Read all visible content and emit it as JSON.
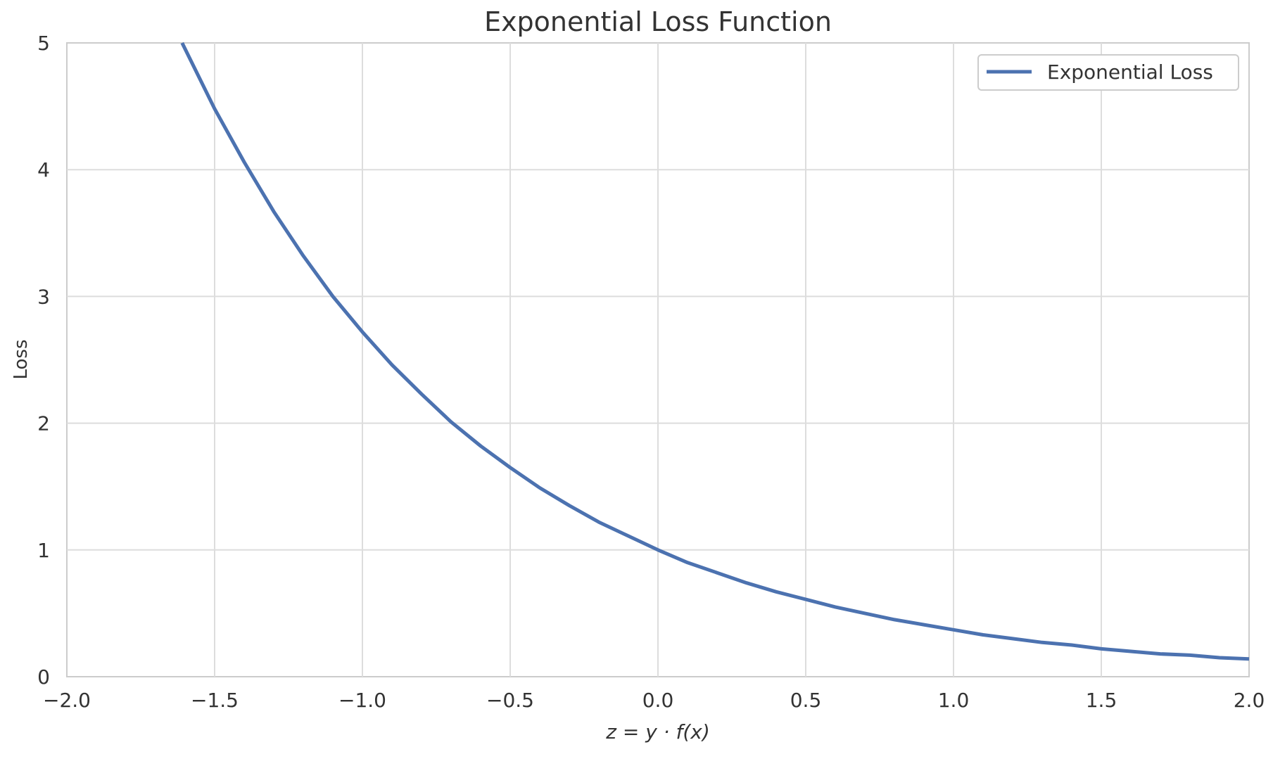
{
  "chart_data": {
    "type": "line",
    "title": "Exponential Loss Function",
    "xlabel": "z = y · f(x)",
    "ylabel": "Loss",
    "xlim": [
      -2.0,
      2.0
    ],
    "ylim": [
      0,
      5
    ],
    "x_ticks": [
      -2.0,
      -1.5,
      -1.0,
      -0.5,
      0.0,
      0.5,
      1.0,
      1.5,
      2.0
    ],
    "x_tick_labels": [
      "−2.0",
      "−1.5",
      "−1.0",
      "−0.5",
      "0.0",
      "0.5",
      "1.0",
      "1.5",
      "2.0"
    ],
    "y_ticks": [
      0,
      1,
      2,
      3,
      4,
      5
    ],
    "y_tick_labels": [
      "0",
      "1",
      "2",
      "3",
      "4",
      "5"
    ],
    "grid": true,
    "legend_position": "top-right",
    "series": [
      {
        "name": "Exponential Loss",
        "color": "#4c72b0",
        "x": [
          -1.61,
          -1.5,
          -1.4,
          -1.3,
          -1.2,
          -1.1,
          -1.0,
          -0.9,
          -0.8,
          -0.7,
          -0.6,
          -0.5,
          -0.4,
          -0.3,
          -0.2,
          -0.1,
          0.0,
          0.1,
          0.2,
          0.3,
          0.4,
          0.5,
          0.6,
          0.7,
          0.8,
          0.9,
          1.0,
          1.1,
          1.2,
          1.3,
          1.4,
          1.5,
          1.6,
          1.7,
          1.8,
          1.9,
          2.0
        ],
        "y": [
          5.0,
          4.48,
          4.06,
          3.67,
          3.32,
          3.0,
          2.72,
          2.46,
          2.23,
          2.01,
          1.82,
          1.65,
          1.49,
          1.35,
          1.22,
          1.11,
          1.0,
          0.9,
          0.82,
          0.74,
          0.67,
          0.61,
          0.55,
          0.5,
          0.45,
          0.41,
          0.37,
          0.33,
          0.3,
          0.27,
          0.25,
          0.22,
          0.2,
          0.18,
          0.17,
          0.15,
          0.14
        ]
      }
    ]
  }
}
